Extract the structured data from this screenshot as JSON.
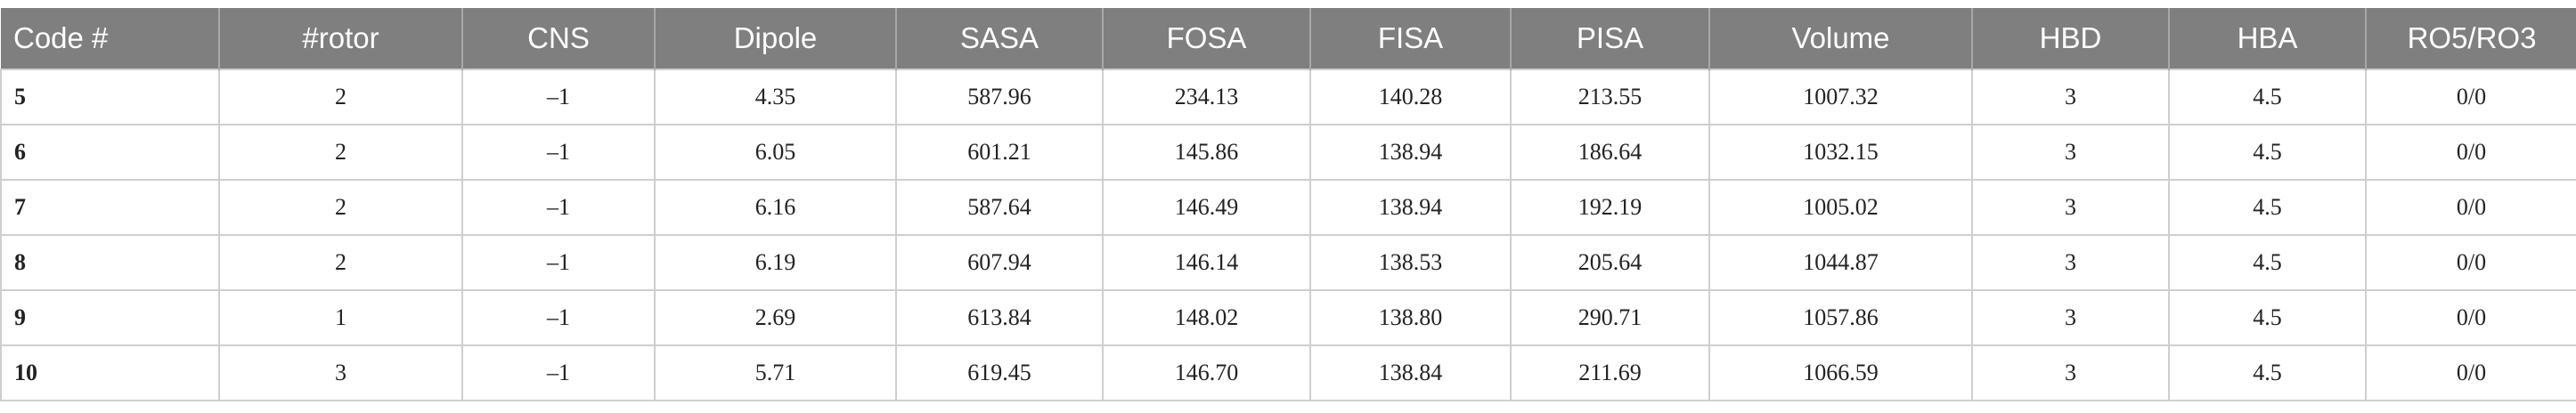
{
  "table": {
    "header": [
      "Code #",
      "#rotor",
      "CNS",
      "Dipole",
      "SASA",
      "FOSA",
      "FISA",
      "PISA",
      "Volume",
      "HBD",
      "HBA",
      "RO5/RO3"
    ],
    "rows": [
      [
        "5",
        "2",
        "–1",
        "4.35",
        "587.96",
        "234.13",
        "140.28",
        "213.55",
        "1007.32",
        "3",
        "4.5",
        "0/0"
      ],
      [
        "6",
        "2",
        "–1",
        "6.05",
        "601.21",
        "145.86",
        "138.94",
        "186.64",
        "1032.15",
        "3",
        "4.5",
        "0/0"
      ],
      [
        "7",
        "2",
        "–1",
        "6.16",
        "587.64",
        "146.49",
        "138.94",
        "192.19",
        "1005.02",
        "3",
        "4.5",
        "0/0"
      ],
      [
        "8",
        "2",
        "–1",
        "6.19",
        "607.94",
        "146.14",
        "138.53",
        "205.64",
        "1044.87",
        "3",
        "4.5",
        "0/0"
      ],
      [
        "9",
        "1",
        "–1",
        "2.69",
        "613.84",
        "148.02",
        "138.80",
        "290.71",
        "1057.86",
        "3",
        "4.5",
        "0/0"
      ],
      [
        "10",
        "3",
        "–1",
        "5.71",
        "619.45",
        "146.70",
        "138.84",
        "211.69",
        "1066.59",
        "3",
        "4.5",
        "0/0"
      ]
    ]
  }
}
